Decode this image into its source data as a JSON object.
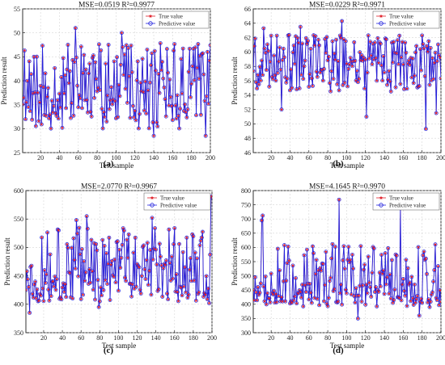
{
  "chart_data": [
    {
      "type": "line",
      "caption": "(a)",
      "title": "MSE=0.0519 R²=0.9977",
      "xlabel": "Test sample",
      "ylabel": "Prediction result",
      "xlim": [
        1,
        200
      ],
      "ylim": [
        25,
        55
      ],
      "xticks": [
        20,
        40,
        60,
        80,
        100,
        120,
        140,
        160,
        180,
        200
      ],
      "yticks": [
        25,
        30,
        35,
        40,
        45,
        50,
        55
      ],
      "grid": true,
      "legend_position": "top-right",
      "series": [
        {
          "name": "True value",
          "color": "#e0202a",
          "marker": "star"
        },
        {
          "name": "Predictive value",
          "color": "#2222dd",
          "marker": "circle"
        }
      ],
      "profile": {
        "baseline": 37,
        "spread_low": 7,
        "spread_high": 11,
        "min": 28.5,
        "max": 51,
        "seed": 11
      },
      "extremes": [
        [
          57,
          51
        ],
        [
          106,
          50
        ],
        [
          49,
          47.5
        ],
        [
          92,
          47.5
        ],
        [
          133,
          46.5
        ],
        [
          13,
          45
        ],
        [
          140,
          28.5
        ],
        [
          195,
          28.5
        ]
      ]
    },
    {
      "type": "line",
      "caption": "(b)",
      "title": "MSE=0.0229 R²=0.9971",
      "xlabel": "Test sample",
      "ylabel": "Prediction result",
      "xlim": [
        1,
        200
      ],
      "ylim": [
        46,
        66
      ],
      "xticks": [
        20,
        40,
        60,
        80,
        100,
        120,
        140,
        160,
        180,
        200
      ],
      "yticks": [
        46,
        48,
        50,
        52,
        54,
        56,
        58,
        60,
        62,
        64,
        66
      ],
      "grid": true,
      "legend_position": "top-right",
      "series": [
        {
          "name": "True value",
          "color": "#e0202a",
          "marker": "star"
        },
        {
          "name": "Predictive value",
          "color": "#2222dd",
          "marker": "circle"
        }
      ],
      "profile": {
        "baseline": 59,
        "spread_low": 4.5,
        "spread_high": 3.5,
        "min": 49,
        "max": 64.5,
        "seed": 23
      },
      "extremes": [
        [
          95,
          64.3
        ],
        [
          51,
          63.5
        ],
        [
          184,
          49.3
        ],
        [
          121,
          51
        ],
        [
          31,
          52
        ],
        [
          195,
          51.5
        ],
        [
          12,
          63.3
        ]
      ]
    },
    {
      "type": "line",
      "caption": "(c)",
      "title": "MSE=2.0770 R²=0.9967",
      "xlabel": "Test sample",
      "ylabel": "Prediction result",
      "xlim": [
        1,
        200
      ],
      "ylim": [
        350,
        600
      ],
      "xticks": [
        20,
        40,
        60,
        80,
        100,
        120,
        140,
        160,
        180,
        200
      ],
      "yticks": [
        350,
        400,
        450,
        500,
        550,
        600
      ],
      "grid": true,
      "legend_position": "top-right",
      "series": [
        {
          "name": "True value",
          "color": "#e0202a",
          "marker": "star"
        },
        {
          "name": "Predictive value",
          "color": "#2222dd",
          "marker": "circle"
        }
      ],
      "profile": {
        "baseline": 460,
        "spread_low": 55,
        "spread_high": 75,
        "min": 385,
        "max": 590,
        "seed": 37
      },
      "extremes": [
        [
          200,
          590
        ],
        [
          199,
          588
        ],
        [
          66,
          555
        ],
        [
          136,
          552
        ],
        [
          55,
          548
        ],
        [
          5,
          385
        ],
        [
          79,
          395
        ],
        [
          197,
          402
        ]
      ]
    },
    {
      "type": "line",
      "caption": "(d)",
      "title": "MSE=4.1645 R²=0.9970",
      "xlabel": "Test sample",
      "ylabel": "Prediction result",
      "xlim": [
        1,
        200
      ],
      "ylim": [
        300,
        800
      ],
      "xticks": [
        20,
        40,
        60,
        80,
        100,
        120,
        140,
        160,
        180,
        200
      ],
      "yticks": [
        300,
        350,
        400,
        450,
        500,
        550,
        600,
        650,
        700,
        750,
        800
      ],
      "grid": true,
      "legend_position": "top-right",
      "series": [
        {
          "name": "True value",
          "color": "#e0202a",
          "marker": "star"
        },
        {
          "name": "Predictive value",
          "color": "#2222dd",
          "marker": "circle"
        }
      ],
      "profile": {
        "baseline": 455,
        "spread_low": 65,
        "spread_high": 160,
        "min": 350,
        "max": 770,
        "seed": 53
      },
      "extremes": [
        [
          92,
          768
        ],
        [
          157,
          738
        ],
        [
          11,
          712
        ],
        [
          10,
          695
        ],
        [
          112,
          350
        ],
        [
          177,
          360
        ]
      ]
    }
  ]
}
